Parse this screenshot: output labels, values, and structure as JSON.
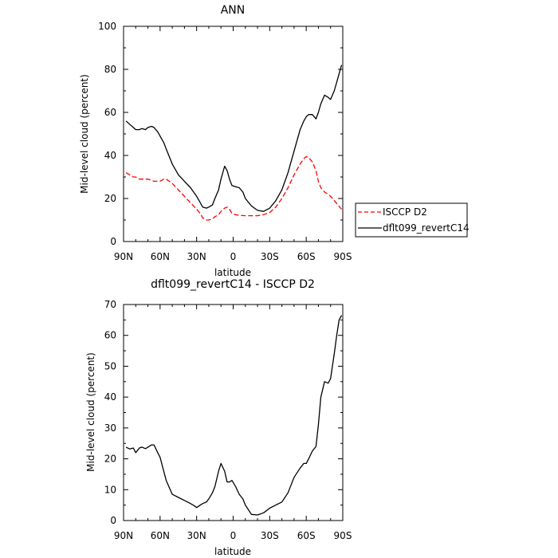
{
  "chart_data": [
    {
      "type": "line",
      "title": "ANN",
      "xlabel": "latitude",
      "ylabel": "Mid-level cloud (percent)",
      "xlim": [
        90,
        -90
      ],
      "ylim": [
        0,
        100
      ],
      "x_tick_values": [
        90,
        60,
        30,
        0,
        -30,
        -60,
        -90
      ],
      "x_tick_labels": [
        "90N",
        "60N",
        "30N",
        "0",
        "30S",
        "60S",
        "90S"
      ],
      "y_tick_values": [
        0,
        20,
        40,
        60,
        80,
        100
      ],
      "y_tick_labels": [
        "0",
        "20",
        "40",
        "60",
        "80",
        "100"
      ],
      "grid": false,
      "legend": "right",
      "series": [
        {
          "name": "ISCCP D2",
          "color": "#ff0000",
          "dash": "dashed",
          "x": [
            88,
            85,
            82,
            80,
            77,
            75,
            70,
            65,
            62,
            60,
            57,
            55,
            50,
            45,
            40,
            35,
            30,
            27,
            25,
            22,
            20,
            17,
            15,
            12,
            10,
            7,
            5,
            3,
            1,
            -2,
            -5,
            -10,
            -15,
            -20,
            -25,
            -30,
            -35,
            -40,
            -45,
            -50,
            -55,
            -58,
            -60,
            -62,
            -65,
            -68,
            -70,
            -72,
            -75,
            -78,
            -80,
            -83,
            -86,
            -89
          ],
          "y": [
            32,
            31,
            30,
            30,
            29,
            29,
            29,
            28,
            28,
            28,
            29,
            29,
            27,
            24,
            21,
            18,
            15,
            13,
            11,
            10,
            10,
            10.5,
            11.5,
            12.5,
            14,
            15.5,
            16,
            15,
            13,
            12.5,
            12.2,
            12,
            12,
            12,
            12.5,
            13.5,
            16,
            20,
            25,
            31,
            36,
            38.5,
            39.5,
            39,
            37,
            33,
            28,
            25,
            23,
            22,
            21,
            19,
            17,
            15
          ]
        },
        {
          "name": "dflt099_revertC14",
          "color": "#000000",
          "dash": "solid",
          "x": [
            88,
            85,
            82,
            80,
            77,
            75,
            72,
            70,
            67,
            65,
            62,
            60,
            57,
            55,
            50,
            45,
            40,
            35,
            30,
            27,
            25,
            22,
            20,
            17,
            15,
            12,
            10,
            7,
            5,
            3,
            1,
            -2,
            -5,
            -8,
            -10,
            -15,
            -20,
            -25,
            -30,
            -35,
            -40,
            -45,
            -50,
            -55,
            -58,
            -60,
            -62,
            -65,
            -68,
            -70,
            -72,
            -75,
            -78,
            -80,
            -83,
            -85,
            -87,
            -89
          ],
          "y": [
            56,
            54.5,
            53,
            52,
            52,
            52.5,
            52,
            53,
            53.5,
            53,
            51,
            49,
            46,
            43,
            36,
            31,
            28,
            25,
            21,
            18,
            16,
            15.5,
            16,
            17,
            20,
            24,
            29,
            35,
            33,
            29,
            26,
            25.5,
            25,
            23,
            20,
            16.5,
            14.5,
            14,
            15.5,
            19,
            24,
            32,
            42,
            52,
            56,
            58,
            59,
            59,
            57,
            60,
            64,
            68,
            67,
            66,
            70,
            74,
            78,
            82
          ]
        }
      ]
    },
    {
      "type": "line",
      "title": "dflt099_revertC14 - ISCCP D2",
      "xlabel": "latitude",
      "ylabel": "Mid-level cloud (percent)",
      "xlim": [
        90,
        -90
      ],
      "ylim": [
        0,
        70
      ],
      "x_tick_values": [
        90,
        60,
        30,
        0,
        -30,
        -60,
        -90
      ],
      "x_tick_labels": [
        "90N",
        "60N",
        "30N",
        "0",
        "30S",
        "60S",
        "90S"
      ],
      "y_tick_values": [
        0,
        10,
        20,
        30,
        40,
        50,
        60,
        70
      ],
      "y_tick_labels": [
        "0",
        "10",
        "20",
        "30",
        "40",
        "50",
        "60",
        "70"
      ],
      "grid": false,
      "series": [
        {
          "color": "#000000",
          "dash": "solid",
          "x": [
            88,
            85,
            82,
            80,
            77,
            75,
            72,
            70,
            67,
            65,
            62,
            60,
            57,
            55,
            50,
            45,
            40,
            35,
            32,
            30,
            27,
            25,
            22,
            20,
            17,
            15,
            12,
            10,
            7,
            5,
            3,
            1,
            -2,
            -5,
            -8,
            -10,
            -15,
            -20,
            -25,
            -30,
            -35,
            -40,
            -45,
            -50,
            -55,
            -58,
            -60,
            -62,
            -65,
            -68,
            -70,
            -72,
            -75,
            -78,
            -80,
            -83,
            -85,
            -87,
            -89
          ],
          "y": [
            23.8,
            23.2,
            23.5,
            22,
            23.5,
            23.8,
            23.3,
            23.8,
            24.5,
            24.5,
            22,
            20.5,
            16,
            13,
            8.5,
            7.5,
            6.5,
            5.5,
            4.8,
            4.2,
            5,
            5.5,
            6,
            7,
            9,
            11,
            16,
            18.5,
            16,
            12.5,
            12.5,
            13,
            11,
            8.5,
            7,
            5,
            2,
            1.8,
            2.5,
            4,
            5,
            6,
            9,
            14,
            17,
            18.5,
            18.5,
            20,
            22.5,
            24,
            31,
            40,
            45,
            44.5,
            46,
            54,
            60,
            65,
            66.5
          ]
        }
      ]
    }
  ]
}
